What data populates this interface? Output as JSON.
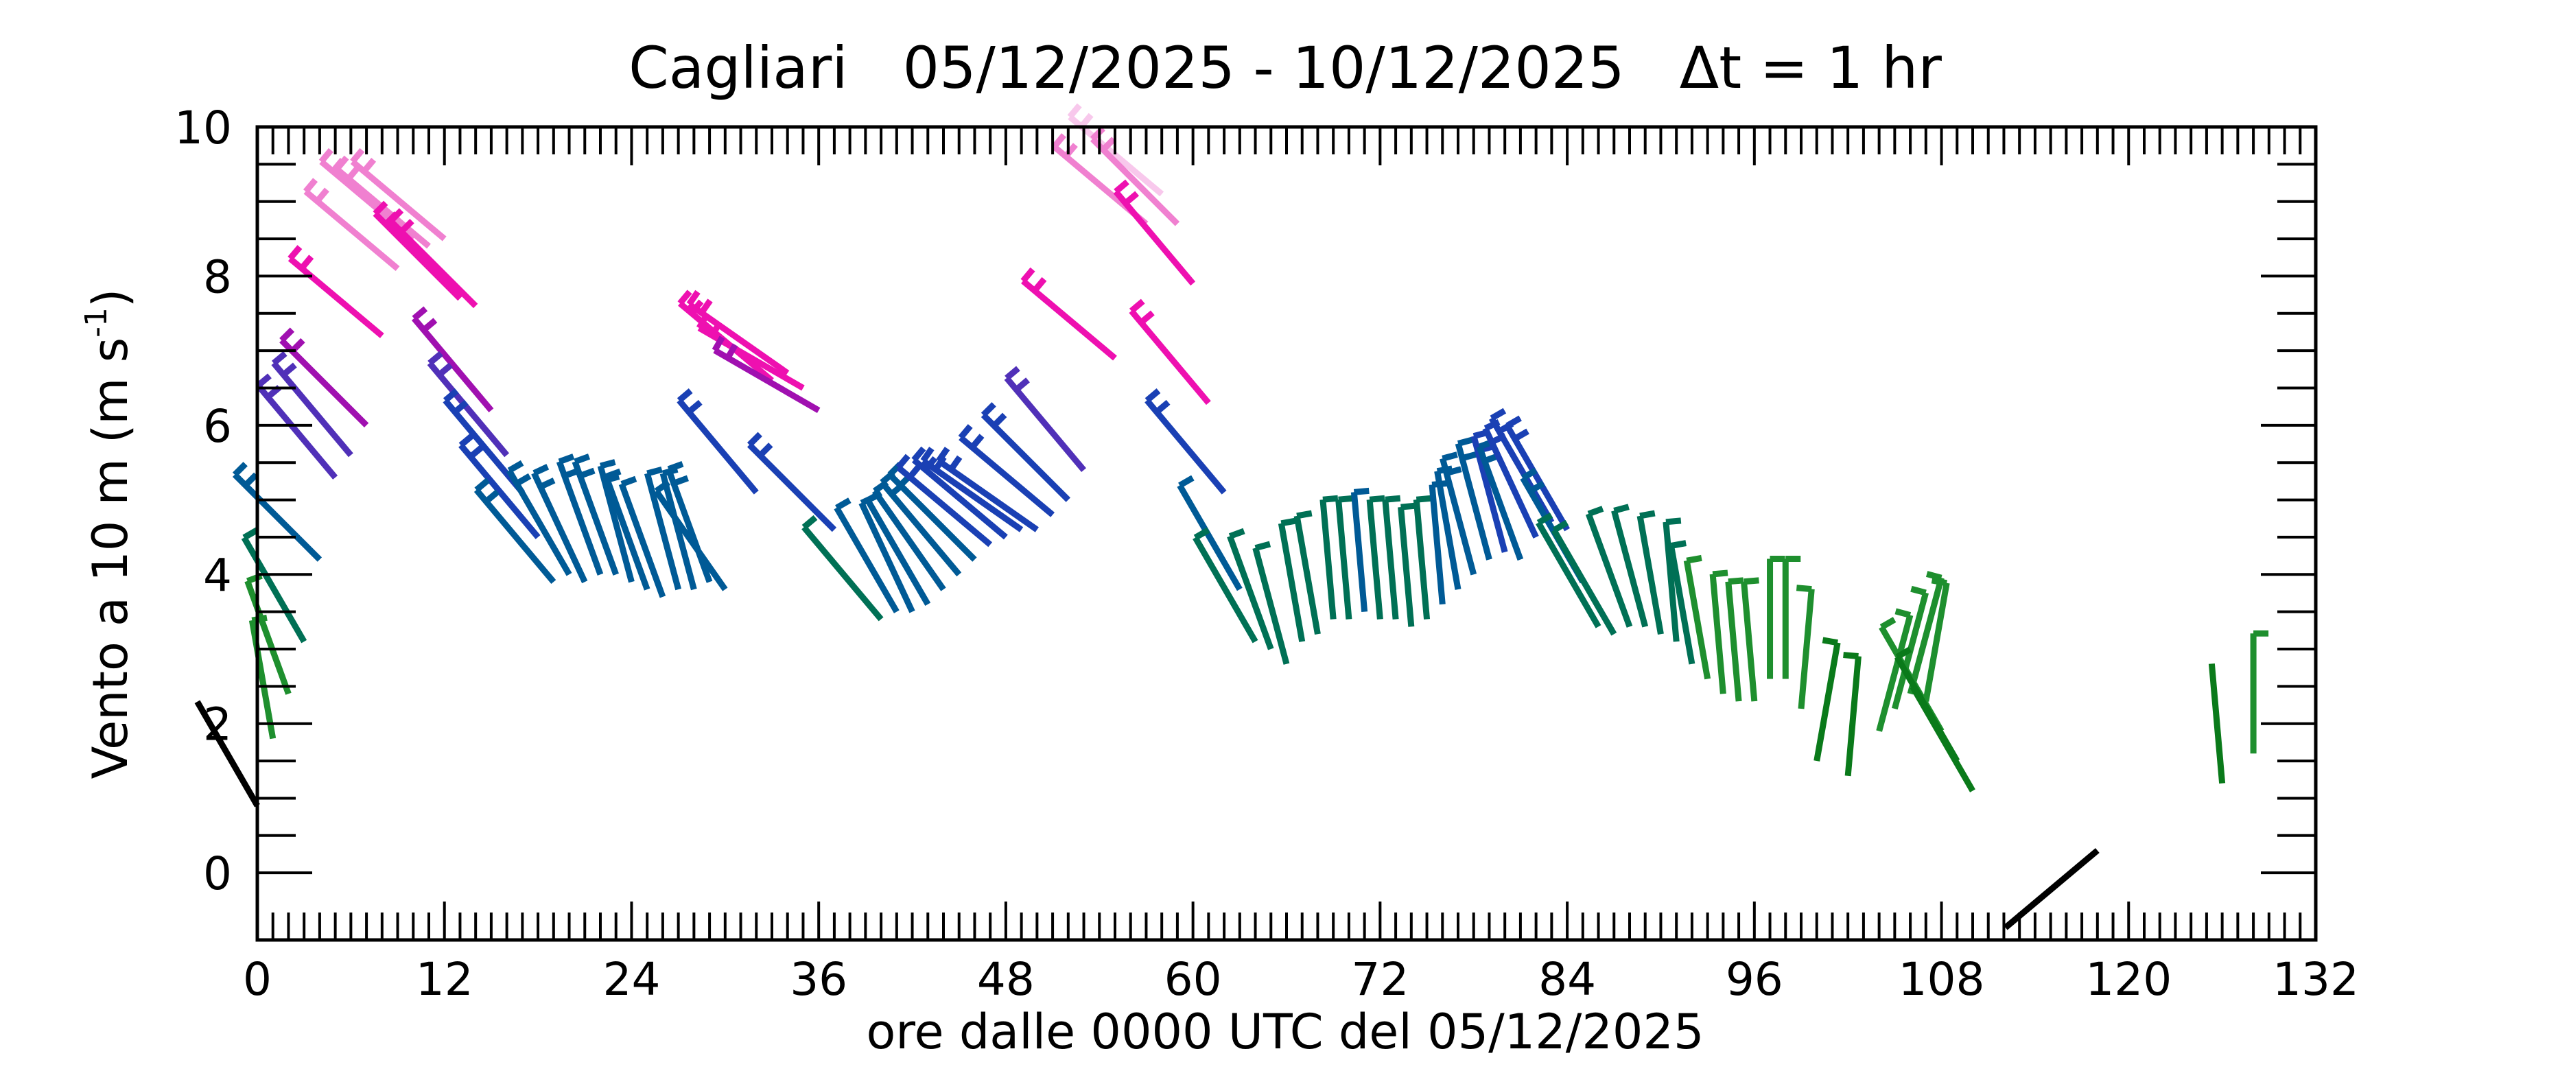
{
  "chart_data": {
    "type": "wind-barb-series",
    "title": "Cagliari   05/12/2025 - 10/12/2025   Δt = 1 hr",
    "xlabel": "ore dalle 0000 UTC del 05/12/2025",
    "ylabel_main": "Vento a 10 m (m s",
    "ylabel_sup": "-1",
    "ylabel_close": ")",
    "xlim": [
      0,
      132
    ],
    "ylim": [
      -0.9,
      10
    ],
    "xticks": [
      0,
      12,
      24,
      36,
      48,
      60,
      72,
      84,
      96,
      108,
      120,
      132
    ],
    "yticks": [
      0,
      2,
      4,
      6,
      8,
      10
    ],
    "grid": false,
    "colors": {
      "lt2": "#0a7a1a",
      "lt3": "#1e8f2e",
      "lt4": "#007055",
      "lt5": "#005a96",
      "lt6": "#1a40b4",
      "lt6b": "#5030b8",
      "lt7": "#a010b0",
      "lt8": "#ee10b0",
      "lt9": "#f080d0",
      "hi": "#f8c8ec"
    },
    "hours": [
      0,
      1,
      2,
      3,
      4,
      5,
      6,
      7,
      8,
      9,
      10,
      11,
      12,
      13,
      14,
      15,
      16,
      17,
      18,
      19,
      20,
      21,
      22,
      23,
      24,
      25,
      26,
      27,
      28,
      29,
      30,
      31,
      32,
      33,
      34,
      35,
      36,
      37,
      38,
      39,
      40,
      41,
      42,
      43,
      44,
      45,
      46,
      47,
      48,
      49,
      50,
      51,
      52,
      53,
      54,
      55,
      56,
      57,
      58,
      59,
      60,
      61,
      62,
      63,
      64,
      65,
      66,
      67,
      68,
      69,
      70,
      71,
      72,
      73,
      74,
      75,
      76,
      77,
      78,
      79,
      80,
      81,
      82,
      83,
      84,
      85,
      86,
      87,
      88,
      89,
      90,
      91,
      92,
      93,
      94,
      95,
      96,
      97,
      98,
      99,
      100,
      101,
      102,
      103,
      104,
      105,
      106,
      107,
      108,
      109,
      110,
      111,
      112,
      113,
      114,
      115,
      116,
      117,
      118,
      119,
      120,
      121,
      122,
      123,
      124,
      125,
      126,
      127,
      128,
      129,
      130,
      131,
      132
    ],
    "speeds": [
      0.9,
      1.8,
      2.4,
      3.1,
      4.2,
      5.3,
      5.6,
      6.0,
      7.2,
      8.1,
      8.5,
      8.4,
      8.5,
      7.7,
      7.6,
      6.2,
      5.6,
      5.1,
      4.5,
      3.9,
      4.0,
      3.9,
      4.0,
      4.0,
      3.9,
      3.8,
      3.7,
      3.8,
      3.8,
      3.9,
      3.8,
      null,
      5.1,
      6.6,
      6.7,
      6.5,
      6.2,
      4.6,
      null,
      null,
      3.4,
      3.5,
      3.5,
      3.6,
      3.8,
      4.0,
      4.2,
      4.4,
      4.5,
      4.6,
      4.6,
      4.8,
      5.0,
      5.4,
      null,
      6.9,
      null,
      8.7,
      9.1,
      8.7,
      7.9,
      6.3,
      5.1,
      3.8,
      3.1,
      3.0,
      2.8,
      3.1,
      3.2,
      3.4,
      3.4,
      3.5,
      3.4,
      3.4,
      3.3,
      3.4,
      3.6,
      3.8,
      4.0,
      4.2,
      4.3,
      4.2,
      4.5,
      4.7,
      4.6,
      3.9,
      3.3,
      3.2,
      3.3,
      3.3,
      3.2,
      3.1,
      2.8,
      2.6,
      2.4,
      2.3,
      2.3,
      2.6,
      2.6,
      2.2,
      1.5,
      null,
      1.3,
      null,
      1.9,
      2.2,
      2.4,
      2.3,
      1.9,
      1.5,
      1.1,
      null,
      null,
      null,
      null,
      null,
      null,
      null,
      0.3,
      null,
      null,
      null,
      null,
      null,
      null,
      null,
      1.2,
      null,
      1.6
    ],
    "directions": [
      330,
      350,
      340,
      330,
      315,
      320,
      320,
      315,
      310,
      310,
      310,
      310,
      310,
      315,
      315,
      320,
      320,
      320,
      320,
      320,
      330,
      335,
      340,
      340,
      345,
      340,
      340,
      345,
      345,
      340,
      325,
      null,
      320,
      310,
      305,
      300,
      300,
      315,
      null,
      null,
      320,
      330,
      335,
      330,
      325,
      320,
      315,
      310,
      310,
      305,
      305,
      310,
      315,
      320,
      null,
      310,
      null,
      310,
      310,
      315,
      320,
      320,
      320,
      330,
      330,
      340,
      345,
      350,
      350,
      355,
      355,
      355,
      355,
      355,
      355,
      355,
      355,
      350,
      345,
      345,
      345,
      340,
      335,
      330,
      330,
      330,
      330,
      330,
      340,
      345,
      350,
      355,
      350,
      350,
      355,
      355,
      355,
      0,
      0,
      5,
      10,
      null,
      5,
      null,
      15,
      15,
      15,
      10,
      330,
      330,
      330,
      null,
      null,
      null,
      null,
      null,
      null,
      null,
      230,
      null,
      null,
      null,
      null,
      null,
      null,
      null,
      355,
      null,
      0
    ]
  }
}
